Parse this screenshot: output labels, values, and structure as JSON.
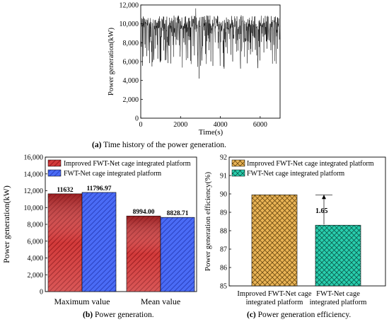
{
  "chart_data": [
    {
      "id": "a",
      "type": "line",
      "caption_label": "(a)",
      "caption_text": " Time history of the power generation.",
      "xlabel": "Time(s)",
      "ylabel": "Power generation(kW)",
      "xlim": [
        0,
        7000
      ],
      "ylim": [
        0,
        12000
      ],
      "xticks": [
        0,
        2000,
        4000,
        6000
      ],
      "xtick_labels": [
        "0",
        "2000",
        "4000",
        "6000"
      ],
      "yticks": [
        0,
        2000,
        4000,
        6000,
        8000,
        10000,
        12000
      ],
      "ytick_labels": [
        "0",
        "2,000",
        "4,000",
        "6,000",
        "8,000",
        "10,000",
        "12,000"
      ],
      "series_summary": {
        "mean": 8994,
        "max": 11632,
        "min": 4200
      },
      "color": "#000000"
    },
    {
      "id": "b",
      "type": "bar",
      "caption_label": "(b)",
      "caption_text": " Power generation.",
      "ylabel": "Power generation(kW)",
      "ylim": [
        0,
        16000
      ],
      "yticks": [
        0,
        2000,
        4000,
        6000,
        8000,
        10000,
        12000,
        14000,
        16000
      ],
      "ytick_labels": [
        "0",
        "2,000",
        "4,000",
        "6,000",
        "8,000",
        "10,000",
        "12,000",
        "14,000",
        "16,000"
      ],
      "categories": [
        "Maximum value",
        "Mean value"
      ],
      "series": [
        {
          "name": "Improved FWT-Net cage integrated platform",
          "values": [
            11632,
            8994.0
          ],
          "labels": [
            "11632",
            "8994.00"
          ],
          "color": "#c0272d"
        },
        {
          "name": "FWT-Net cage integrated platform",
          "values": [
            11796.97,
            8828.71
          ],
          "labels": [
            "11796.97",
            "8828.71"
          ],
          "color": "#3d5ef0"
        }
      ],
      "legend": "top"
    },
    {
      "id": "c",
      "type": "bar",
      "caption_label": "(c)",
      "caption_text": " Power generation efficiency.",
      "ylabel": "Power generation efficiency(%)",
      "ylim": [
        85,
        92
      ],
      "yticks": [
        85,
        86,
        87,
        88,
        89,
        90,
        91,
        92
      ],
      "ytick_labels": [
        "85",
        "86",
        "87",
        "88",
        "89",
        "90",
        "91",
        "92"
      ],
      "categories": [
        [
          "Improved FWT-Net cage",
          "integrated platform"
        ],
        [
          "FWT-Net cage",
          "integrated platform"
        ]
      ],
      "series": [
        {
          "name": "Improved FWT-Net cage integrated platform",
          "value": 89.95,
          "color": "#e8a94a"
        },
        {
          "name": "FWT-Net cage integrated platform",
          "value": 88.3,
          "color": "#1fc6a5"
        }
      ],
      "annotation": "1.65",
      "legend": "top"
    }
  ]
}
